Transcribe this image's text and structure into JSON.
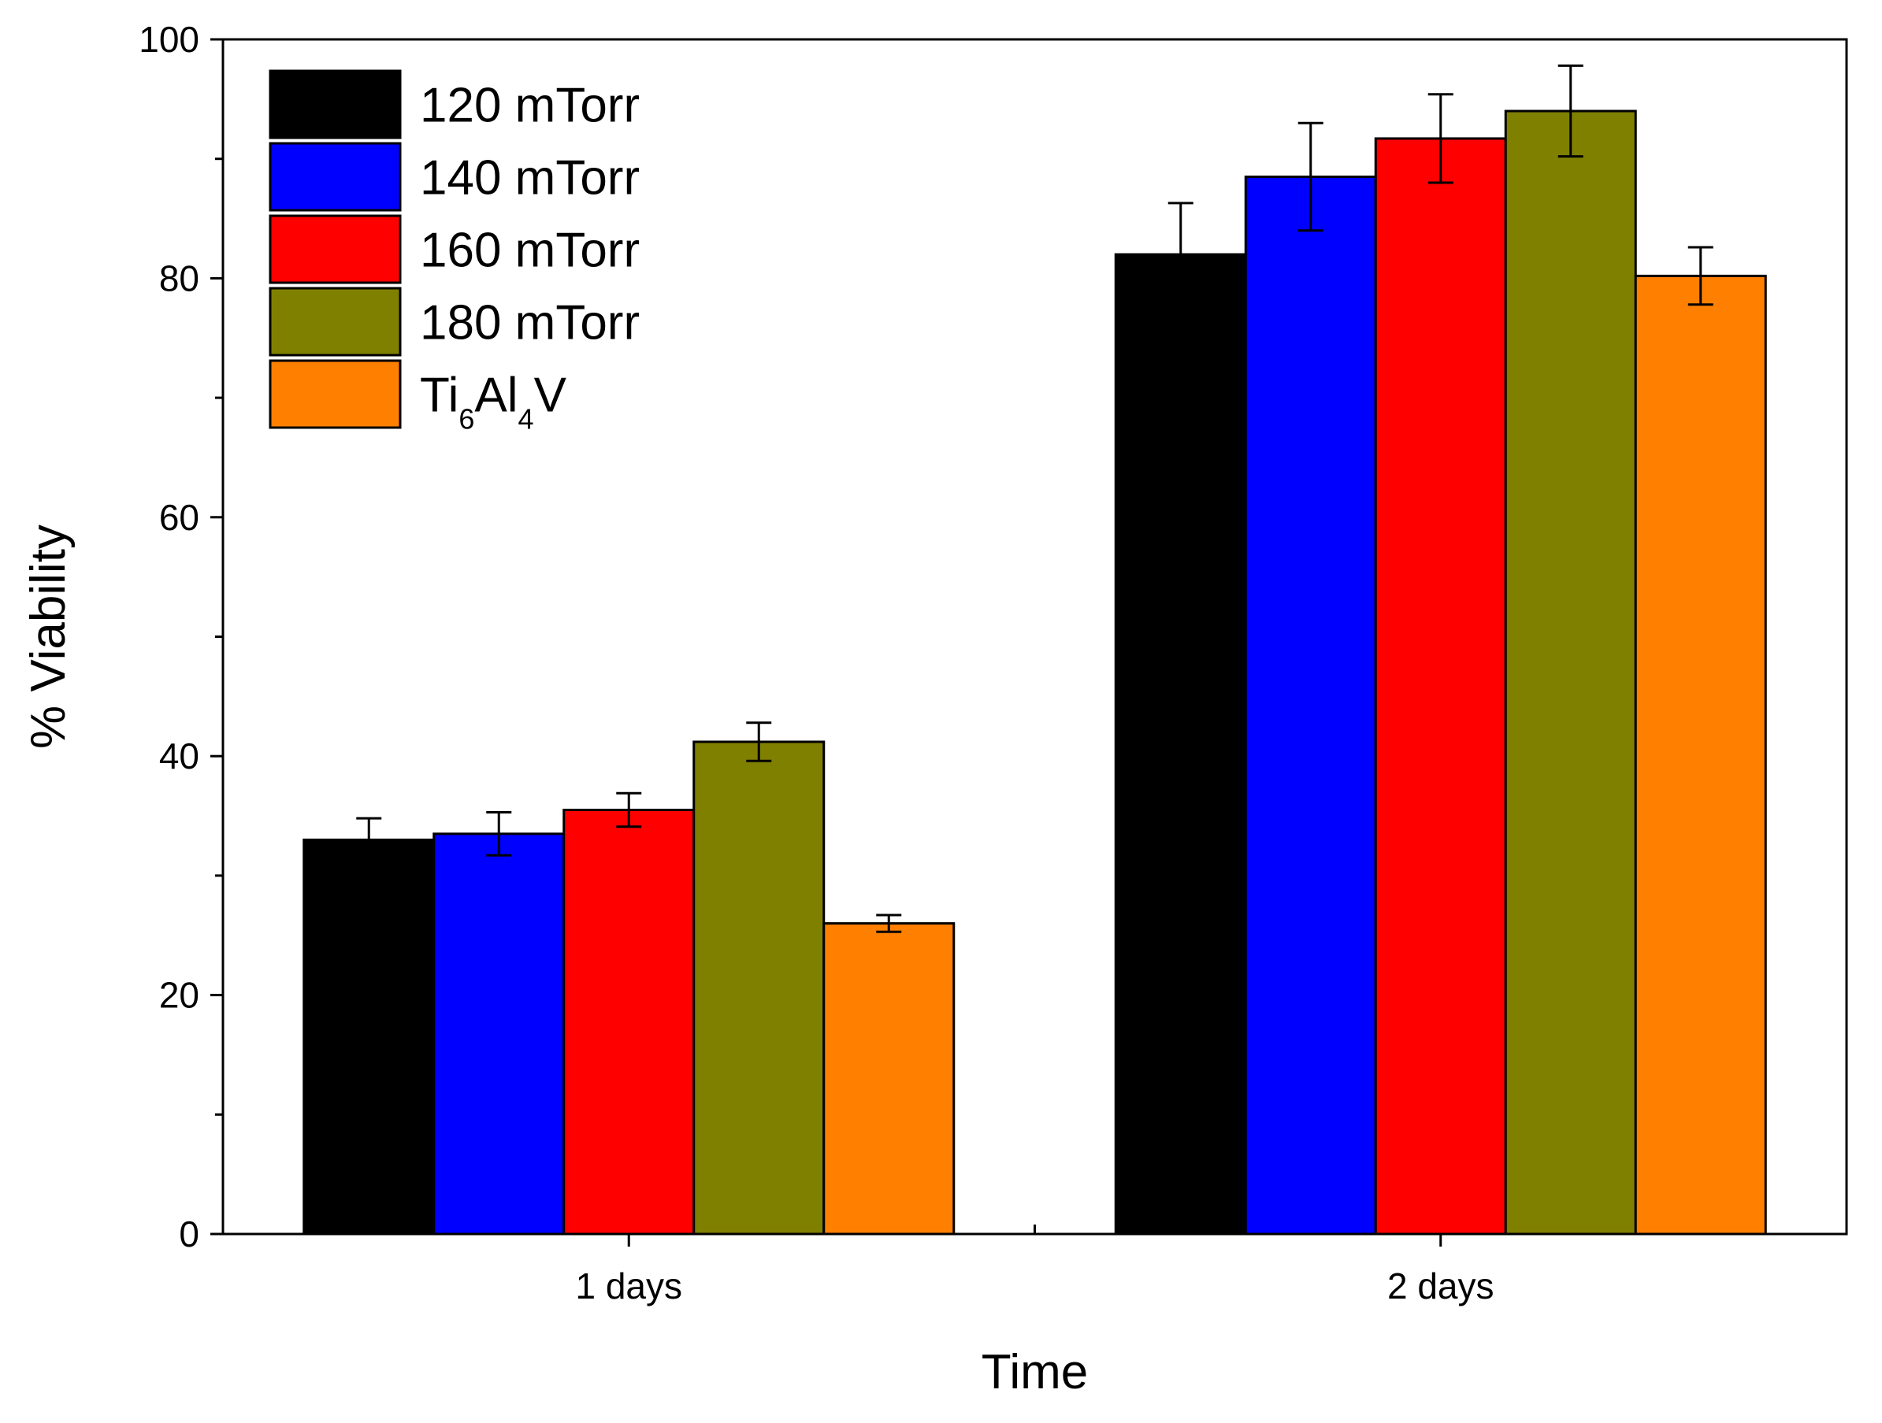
{
  "chart_data": {
    "type": "bar",
    "title": "",
    "xlabel": "Time",
    "ylabel": "% Viability",
    "ylim": [
      0,
      100
    ],
    "yticks": [
      0,
      20,
      40,
      60,
      80,
      100
    ],
    "yminor_step": 10,
    "categories": [
      "1 days",
      "2 days"
    ],
    "legend_position": "top-left",
    "grid": false,
    "series": [
      {
        "name": "120 mTorr",
        "color": "#000000",
        "values": [
          33.0,
          82.0
        ],
        "errors": [
          1.8,
          4.3
        ]
      },
      {
        "name": "140 mTorr",
        "color": "#0000ff",
        "values": [
          33.5,
          88.5
        ],
        "errors": [
          1.8,
          4.5
        ]
      },
      {
        "name": "160 mTorr",
        "color": "#ff0000",
        "values": [
          35.5,
          91.7
        ],
        "errors": [
          1.4,
          3.7
        ]
      },
      {
        "name": "180 mTorr",
        "color": "#808000",
        "values": [
          41.2,
          94.0
        ],
        "errors": [
          1.6,
          3.8
        ]
      },
      {
        "name": "Ti6Al4V",
        "color": "#ff8000",
        "values": [
          26.0,
          80.2
        ],
        "errors": [
          0.7,
          2.4
        ]
      }
    ],
    "legend_special": {
      "Ti6Al4V": {
        "parts": [
          "Ti",
          "6",
          "Al",
          "4",
          "V"
        ]
      }
    }
  }
}
